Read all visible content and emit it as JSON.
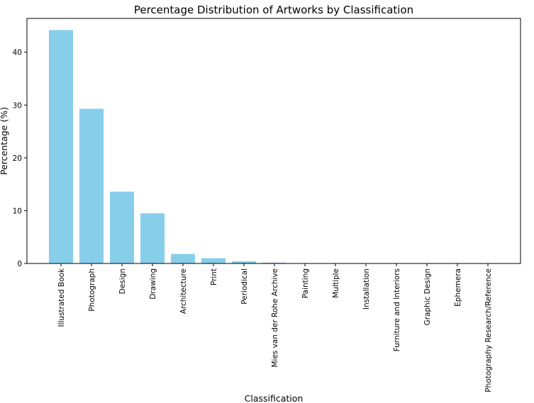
{
  "chart_data": {
    "type": "bar",
    "title": "Percentage Distribution of Artworks by Classification",
    "xlabel": "Classification",
    "ylabel": "Percentage (%)",
    "categories": [
      "Illustrated Book",
      "Photograph",
      "Design",
      "Drawing",
      "Architecture",
      "Print",
      "Periodical",
      "Mies van der Rohe Archive",
      "Painting",
      "Multiple",
      "Installation",
      "Furniture and Interiors",
      "Graphic Design",
      "Ephemera",
      "Photography Research/Reference"
    ],
    "values": [
      44.2,
      29.3,
      13.6,
      9.5,
      1.8,
      1.0,
      0.4,
      0.15,
      0.05,
      0.03,
      0.02,
      0.01,
      0.01,
      0.01,
      0.01
    ],
    "ylim": [
      0,
      46.4
    ],
    "yticks": [
      0,
      10,
      20,
      30,
      40
    ],
    "grid": false,
    "legend": "none",
    "bar_color": "#87CEEB"
  }
}
